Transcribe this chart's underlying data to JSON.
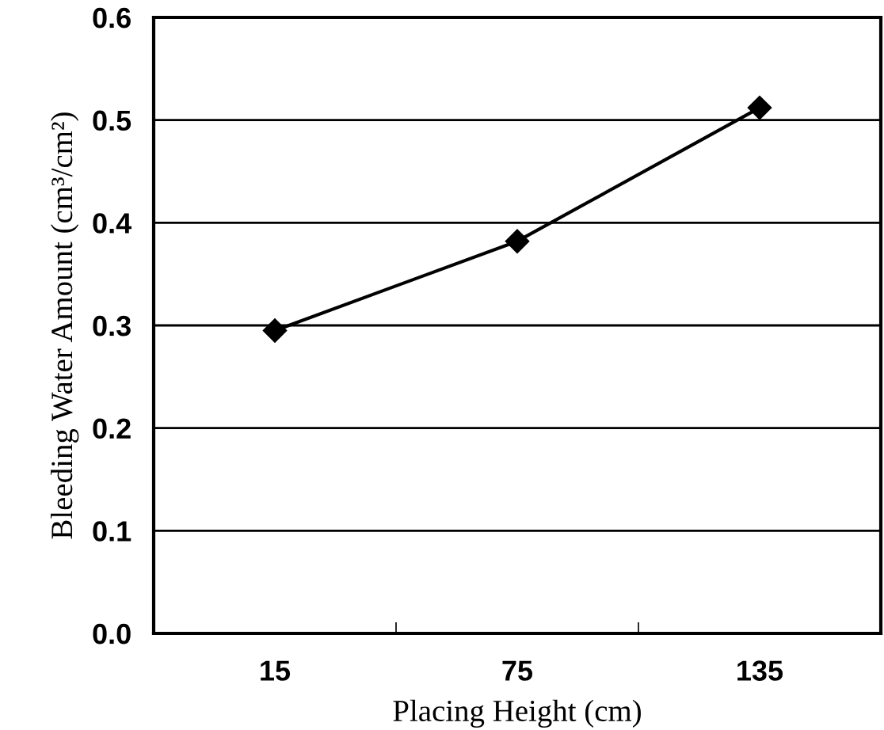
{
  "chart_data": {
    "type": "line",
    "xlabel": "Placing Height (cm)",
    "ylabel": "Bleeding Water Amount (cm³/cm²)",
    "categories": [
      "15",
      "75",
      "135"
    ],
    "series": [
      {
        "color": "#000000",
        "values": [
          0.295,
          0.382,
          0.512
        ]
      }
    ],
    "ylim": [
      0,
      0.6
    ],
    "yticks": [
      {
        "value": 0,
        "label": "0.0"
      },
      {
        "value": 0.1,
        "label": "0.1"
      },
      {
        "value": 0.2,
        "label": "0.2"
      },
      {
        "value": 0.3,
        "label": "0.3"
      },
      {
        "value": 0.4,
        "label": "0.4"
      },
      {
        "value": 0.5,
        "label": "0.5"
      },
      {
        "value": 0.6,
        "label": "0.6"
      }
    ],
    "grid": "y",
    "marker": "diamond",
    "line_style": "solid"
  }
}
